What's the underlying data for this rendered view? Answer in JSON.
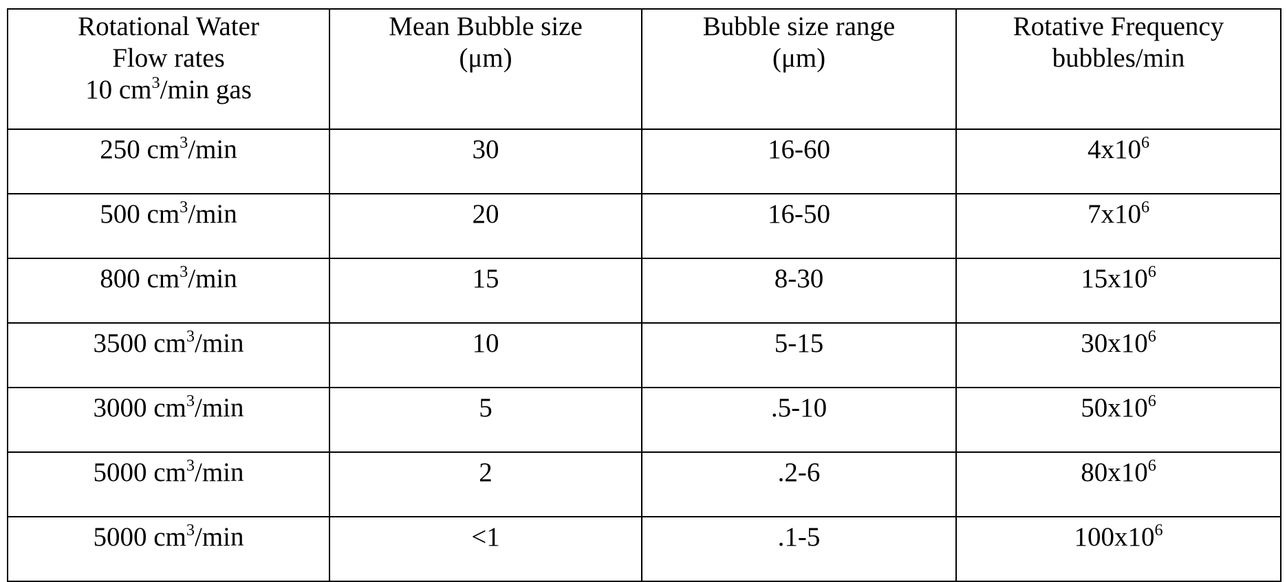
{
  "table": {
    "header": [
      {
        "lines": [
          [
            {
              "text": "Rotational Water"
            }
          ],
          [
            {
              "text": "Flow rates"
            }
          ],
          [
            {
              "text": "10 cm"
            },
            {
              "sup": "3"
            },
            {
              "text": "/min gas"
            }
          ]
        ]
      },
      {
        "lines": [
          [
            {
              "text": "Mean Bubble size"
            }
          ],
          [
            {
              "text": "(μm)"
            }
          ]
        ]
      },
      {
        "lines": [
          [
            {
              "text": "Bubble size range"
            }
          ],
          [
            {
              "text": "(μm)"
            }
          ]
        ]
      },
      {
        "lines": [
          [
            {
              "text": "Rotative Frequency"
            }
          ],
          [
            {
              "text": "bubbles/min"
            }
          ]
        ]
      }
    ],
    "rows": [
      [
        [
          {
            "text": "250 cm"
          },
          {
            "sup": "3"
          },
          {
            "text": "/min"
          }
        ],
        [
          {
            "text": "30"
          }
        ],
        [
          {
            "text": "16-60"
          }
        ],
        [
          {
            "text": "4x10"
          },
          {
            "sup": "6"
          }
        ]
      ],
      [
        [
          {
            "text": "500 cm"
          },
          {
            "sup": "3"
          },
          {
            "text": "/min"
          }
        ],
        [
          {
            "text": "20"
          }
        ],
        [
          {
            "text": "16-50"
          }
        ],
        [
          {
            "text": "7x10"
          },
          {
            "sup": "6"
          }
        ]
      ],
      [
        [
          {
            "text": "800 cm"
          },
          {
            "sup": "3"
          },
          {
            "text": "/min"
          }
        ],
        [
          {
            "text": "15"
          }
        ],
        [
          {
            "text": "8-30"
          }
        ],
        [
          {
            "text": "15x10"
          },
          {
            "sup": "6"
          }
        ]
      ],
      [
        [
          {
            "text": "3500 cm"
          },
          {
            "sup": "3"
          },
          {
            "text": "/min"
          }
        ],
        [
          {
            "text": "10"
          }
        ],
        [
          {
            "text": "5-15"
          }
        ],
        [
          {
            "text": "30x10"
          },
          {
            "sup": "6"
          }
        ]
      ],
      [
        [
          {
            "text": "3000 cm"
          },
          {
            "sup": "3"
          },
          {
            "text": "/min"
          }
        ],
        [
          {
            "text": "5"
          }
        ],
        [
          {
            "text": ".5-10"
          }
        ],
        [
          {
            "text": "50x10"
          },
          {
            "sup": "6"
          }
        ]
      ],
      [
        [
          {
            "text": "5000 cm"
          },
          {
            "sup": "3"
          },
          {
            "text": "/min"
          }
        ],
        [
          {
            "text": "2"
          }
        ],
        [
          {
            "text": ".2-6"
          }
        ],
        [
          {
            "text": "80x10"
          },
          {
            "sup": "6"
          }
        ]
      ],
      [
        [
          {
            "text": "5000 cm"
          },
          {
            "sup": "3"
          },
          {
            "text": "/min"
          }
        ],
        [
          {
            "text": "<1"
          }
        ],
        [
          {
            "text": ".1-5"
          }
        ],
        [
          {
            "text": "100x10"
          },
          {
            "sup": "6"
          }
        ]
      ]
    ]
  }
}
